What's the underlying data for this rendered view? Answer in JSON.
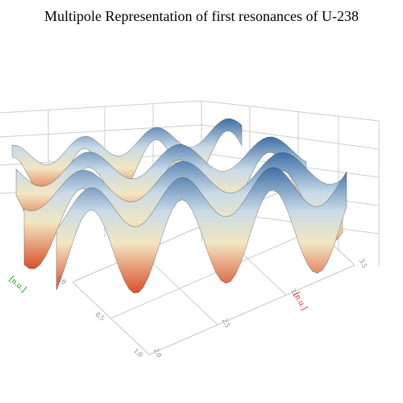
{
  "chart_data": {
    "type": "surface",
    "title": "Multipole Representation of first resonances of U-238",
    "x_label": "[n.u.]",
    "x_label_color": "#1a8a1a",
    "y_label": "[n.u.]",
    "y_label_color": "#e0281e",
    "xlim": [
      0,
      1
    ],
    "xticks": [
      {
        "value": 0,
        "label": "0.0"
      },
      {
        "value": 0.5,
        "label": "0.5"
      },
      {
        "value": 1,
        "label": "1.0"
      }
    ],
    "ylim": [
      2,
      3.5
    ],
    "yticks": [
      {
        "value": 2,
        "label": "2.0"
      },
      {
        "value": 2.5,
        "label": "2.5"
      },
      {
        "value": 3,
        "label": "3.0"
      },
      {
        "value": 3.5,
        "label": "3.5"
      }
    ],
    "grid": true
  }
}
